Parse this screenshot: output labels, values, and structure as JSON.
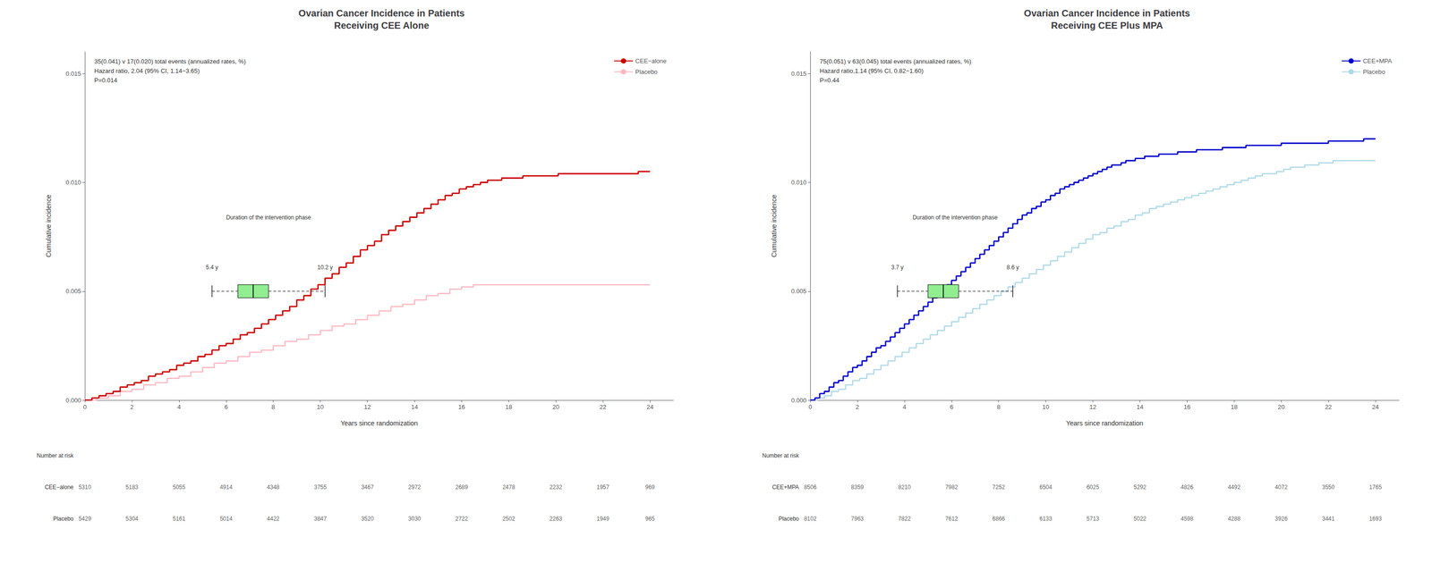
{
  "chart_data": [
    {
      "type": "step",
      "title": "Ovarian Cancer Incidence in Patients\nReceiving CEE Alone",
      "annotation": "35(0.041) v 17(0.020) total events (annualized rates, %)\nHazard ratio, 2.04 (95% CI, 1.14−3.65)\nP=0.014",
      "xlabel": "Years since randomization",
      "ylabel": "Cumulative incidence",
      "xlim": [
        0,
        25
      ],
      "xticks": [
        0,
        2,
        4,
        6,
        8,
        10,
        12,
        14,
        16,
        18,
        20,
        22,
        24
      ],
      "ylim": [
        0,
        0.016
      ],
      "yticks": [
        {
          "value": 0,
          "label": "0.000"
        },
        0.005,
        {
          "value": 0.01,
          "label": "0.010"
        },
        0.015
      ],
      "grid": false,
      "legend": "upper right",
      "series": [
        {
          "name": "CEE−alone",
          "color": "#CC0000",
          "x": [
            0,
            0.3,
            0.6,
            0.9,
            1.2,
            1.5,
            1.8,
            2.1,
            2.4,
            2.7,
            3.0,
            3.3,
            3.6,
            3.9,
            4.2,
            4.5,
            4.8,
            5.1,
            5.4,
            5.7,
            6.0,
            6.3,
            6.6,
            6.9,
            7.2,
            7.5,
            7.8,
            8.1,
            8.4,
            8.7,
            9.0,
            9.3,
            9.6,
            9.9,
            10.2,
            10.5,
            10.8,
            11.1,
            11.4,
            11.7,
            12.0,
            12.3,
            12.6,
            12.9,
            13.2,
            13.5,
            13.8,
            14.1,
            14.4,
            14.7,
            15.0,
            15.3,
            15.6,
            15.9,
            16.2,
            16.5,
            16.8,
            17.1,
            17.4,
            17.7,
            18.0,
            18.3,
            18.6,
            18.9,
            19.2,
            19.5,
            19.8,
            20.1,
            20.4,
            20.7,
            21.0,
            21.5,
            22.0,
            22.5,
            23.0,
            23.5,
            24.0
          ],
          "values": [
            0,
            0.0001,
            0.0002,
            0.0003,
            0.0004,
            0.0006,
            0.0007,
            0.0008,
            0.0009,
            0.0011,
            0.0012,
            0.0013,
            0.0014,
            0.0016,
            0.0017,
            0.0018,
            0.002,
            0.0021,
            0.0023,
            0.0025,
            0.0026,
            0.0028,
            0.003,
            0.0031,
            0.0033,
            0.0035,
            0.0037,
            0.0039,
            0.0041,
            0.0043,
            0.0046,
            0.0048,
            0.0051,
            0.0053,
            0.0056,
            0.0058,
            0.0061,
            0.0063,
            0.0066,
            0.0069,
            0.0071,
            0.0073,
            0.0076,
            0.0078,
            0.008,
            0.0082,
            0.0084,
            0.0086,
            0.0088,
            0.009,
            0.0092,
            0.0094,
            0.0095,
            0.0097,
            0.0098,
            0.0099,
            0.01,
            0.0101,
            0.0101,
            0.0102,
            0.0102,
            0.0102,
            0.0103,
            0.0103,
            0.0103,
            0.0103,
            0.0103,
            0.0104,
            0.0104,
            0.0104,
            0.0104,
            0.0104,
            0.0104,
            0.0104,
            0.0104,
            0.0105,
            0.0105
          ]
        },
        {
          "name": "Placebo",
          "color": "#FFB6C1",
          "x": [
            0,
            0.5,
            1.0,
            1.5,
            2.0,
            2.5,
            3.0,
            3.5,
            4.0,
            4.5,
            5.0,
            5.5,
            6.0,
            6.5,
            7.0,
            7.5,
            8.0,
            8.5,
            9.0,
            9.5,
            10.0,
            10.5,
            11.0,
            11.5,
            12.0,
            12.5,
            13.0,
            13.5,
            14.0,
            14.5,
            15.0,
            15.5,
            16.0,
            16.5,
            17.0,
            17.5,
            18.0,
            18.5,
            19.0,
            19.5,
            20.0,
            20.5,
            21.0,
            21.5,
            22.0,
            22.5,
            23.0,
            23.5,
            24.0
          ],
          "values": [
            0,
            0.0001,
            0.0002,
            0.0004,
            0.0005,
            0.0007,
            0.0008,
            0.001,
            0.0011,
            0.0013,
            0.0015,
            0.0017,
            0.0018,
            0.002,
            0.0022,
            0.0023,
            0.0025,
            0.0027,
            0.0028,
            0.003,
            0.0032,
            0.0034,
            0.0035,
            0.0037,
            0.0039,
            0.0041,
            0.0043,
            0.0044,
            0.0046,
            0.0048,
            0.0049,
            0.0051,
            0.0052,
            0.0053,
            0.0053,
            0.0053,
            0.0053,
            0.0053,
            0.0053,
            0.0053,
            0.0053,
            0.0053,
            0.0053,
            0.0053,
            0.0053,
            0.0053,
            0.0053,
            0.0053,
            0.0053
          ]
        }
      ],
      "intervention": {
        "label": "Duration of the intervention phase",
        "start": 5.4,
        "end": 10.2,
        "box_left": 6.5,
        "box_right": 7.8,
        "median": 7.15,
        "y": 0.005,
        "start_label": "5.4 y",
        "end_label": "10.2 y",
        "box_color": "#90EE90",
        "line_color": "#000000"
      },
      "at_risk": {
        "title": "Number at risk",
        "x": [
          0,
          2,
          4,
          6,
          8,
          10,
          12,
          14,
          16,
          18,
          20,
          22,
          24
        ],
        "rows": [
          {
            "name": "CEE−alone",
            "values": [
              5310,
              5183,
              5055,
              4914,
              4348,
              3755,
              3467,
              2972,
              2689,
              2478,
              2232,
              1957,
              969
            ]
          },
          {
            "name": "Placebo",
            "values": [
              5429,
              5304,
              5161,
              5014,
              4422,
              3847,
              3520,
              3030,
              2722,
              2502,
              2263,
              1949,
              965
            ]
          }
        ]
      }
    },
    {
      "type": "step",
      "title": "Ovarian Cancer Incidence in Patients\nReceiving CEE Plus MPA",
      "annotation": "75(0.051) v 63(0.045) total events (annualized rates, %)\nHazard ratio,1.14 (95% CI, 0.82−1.60)\nP=0.44",
      "xlabel": "Years since randomization",
      "ylabel": "Cumulative incidence",
      "xlim": [
        0,
        25
      ],
      "xticks": [
        0,
        2,
        4,
        6,
        8,
        10,
        12,
        14,
        16,
        18,
        20,
        22,
        24
      ],
      "ylim": [
        0,
        0.016
      ],
      "yticks": [
        {
          "value": 0,
          "label": "0.000"
        },
        0.005,
        {
          "value": 0.01,
          "label": "0.010"
        },
        0.015
      ],
      "grid": false,
      "legend": "upper right",
      "series": [
        {
          "name": "CEE+MPA",
          "color": "#0000CC",
          "x": [
            0,
            0.2,
            0.4,
            0.6,
            0.8,
            1.0,
            1.2,
            1.4,
            1.6,
            1.8,
            2.0,
            2.2,
            2.4,
            2.6,
            2.8,
            3.0,
            3.2,
            3.4,
            3.6,
            3.8,
            4.0,
            4.2,
            4.4,
            4.6,
            4.8,
            5.0,
            5.2,
            5.4,
            5.6,
            5.8,
            6.0,
            6.2,
            6.4,
            6.6,
            6.8,
            7.0,
            7.2,
            7.4,
            7.6,
            7.8,
            8.0,
            8.2,
            8.4,
            8.6,
            8.8,
            9.0,
            9.2,
            9.4,
            9.6,
            9.8,
            10.0,
            10.2,
            10.4,
            10.6,
            10.8,
            11.0,
            11.2,
            11.4,
            11.6,
            11.8,
            12.0,
            12.2,
            12.4,
            12.6,
            12.8,
            13.0,
            13.2,
            13.4,
            13.6,
            13.8,
            14.0,
            14.2,
            14.4,
            14.6,
            14.8,
            15.0,
            15.2,
            15.4,
            15.6,
            15.8,
            16.0,
            16.2,
            16.4,
            16.6,
            16.8,
            17.0,
            17.5,
            18.0,
            18.5,
            19.0,
            19.5,
            20.0,
            20.5,
            21.0,
            21.5,
            22.0,
            22.5,
            23.0,
            23.5,
            24.0
          ],
          "values": [
            0,
            0.0001,
            0.0003,
            0.0004,
            0.0006,
            0.0008,
            0.0009,
            0.0011,
            0.0013,
            0.0015,
            0.0016,
            0.0018,
            0.002,
            0.0022,
            0.0024,
            0.0025,
            0.0027,
            0.0029,
            0.0031,
            0.0033,
            0.0035,
            0.0037,
            0.0039,
            0.0041,
            0.0043,
            0.0045,
            0.0047,
            0.0049,
            0.0051,
            0.0053,
            0.0055,
            0.0057,
            0.0059,
            0.0061,
            0.0063,
            0.0065,
            0.0067,
            0.0069,
            0.0071,
            0.0073,
            0.0075,
            0.0077,
            0.0079,
            0.0081,
            0.0083,
            0.0085,
            0.0086,
            0.0088,
            0.0089,
            0.0091,
            0.0092,
            0.0094,
            0.0095,
            0.0097,
            0.0098,
            0.0099,
            0.01,
            0.0101,
            0.0102,
            0.0103,
            0.0104,
            0.0105,
            0.0106,
            0.0107,
            0.0108,
            0.0108,
            0.0109,
            0.011,
            0.011,
            0.0111,
            0.0111,
            0.0112,
            0.0112,
            0.0112,
            0.0113,
            0.0113,
            0.0113,
            0.0113,
            0.0114,
            0.0114,
            0.0114,
            0.0114,
            0.0115,
            0.0115,
            0.0115,
            0.0115,
            0.0116,
            0.0116,
            0.0117,
            0.0117,
            0.0117,
            0.0118,
            0.0118,
            0.0118,
            0.0118,
            0.0119,
            0.0119,
            0.0119,
            0.012,
            0.012
          ]
        },
        {
          "name": "Placebo",
          "color": "#ADD8E6",
          "x": [
            0,
            0.3,
            0.6,
            0.9,
            1.2,
            1.5,
            1.8,
            2.1,
            2.4,
            2.7,
            3.0,
            3.3,
            3.6,
            3.9,
            4.2,
            4.5,
            4.8,
            5.1,
            5.4,
            5.7,
            6.0,
            6.3,
            6.6,
            6.9,
            7.2,
            7.5,
            7.8,
            8.1,
            8.4,
            8.7,
            9.0,
            9.3,
            9.6,
            9.9,
            10.2,
            10.5,
            10.8,
            11.1,
            11.4,
            11.7,
            12.0,
            12.3,
            12.6,
            12.9,
            13.2,
            13.5,
            13.8,
            14.1,
            14.4,
            14.7,
            15.0,
            15.3,
            15.6,
            15.9,
            16.2,
            16.5,
            16.8,
            17.1,
            17.4,
            17.7,
            18.0,
            18.3,
            18.6,
            18.9,
            19.2,
            19.5,
            19.8,
            20.1,
            20.4,
            20.7,
            21.0,
            21.3,
            21.6,
            21.9,
            22.2,
            22.5,
            22.8,
            23.1,
            23.4,
            23.7,
            24.0
          ],
          "values": [
            0,
            0.0001,
            0.0002,
            0.0004,
            0.0005,
            0.0007,
            0.0009,
            0.001,
            0.0012,
            0.0014,
            0.0016,
            0.0018,
            0.002,
            0.0022,
            0.0024,
            0.0026,
            0.0028,
            0.003,
            0.0032,
            0.0034,
            0.0036,
            0.0038,
            0.004,
            0.0042,
            0.0044,
            0.0046,
            0.0048,
            0.005,
            0.0052,
            0.0054,
            0.0056,
            0.0058,
            0.006,
            0.0062,
            0.0064,
            0.0066,
            0.0068,
            0.007,
            0.0072,
            0.0074,
            0.0076,
            0.0077,
            0.0079,
            0.008,
            0.0082,
            0.0083,
            0.0085,
            0.0086,
            0.0088,
            0.0089,
            0.009,
            0.0091,
            0.0092,
            0.0093,
            0.0094,
            0.0095,
            0.0096,
            0.0097,
            0.0098,
            0.0099,
            0.01,
            0.0101,
            0.0102,
            0.0103,
            0.0104,
            0.0104,
            0.0105,
            0.0106,
            0.0107,
            0.0107,
            0.0108,
            0.0108,
            0.0109,
            0.0109,
            0.011,
            0.011,
            0.011,
            0.011,
            0.011,
            0.011,
            0.011
          ]
        }
      ],
      "intervention": {
        "label": "Duration of the intervention phase",
        "start": 3.7,
        "end": 8.6,
        "box_left": 5.0,
        "box_right": 6.3,
        "median": 5.65,
        "y": 0.005,
        "start_label": "3.7 y",
        "end_label": "8.6 y",
        "box_color": "#90EE90",
        "line_color": "#000000"
      },
      "at_risk": {
        "title": "Number at risk",
        "x": [
          0,
          2,
          4,
          6,
          8,
          10,
          12,
          14,
          16,
          18,
          20,
          22,
          24
        ],
        "rows": [
          {
            "name": "CEE+MPA",
            "values": [
              8506,
              8359,
              8210,
              7982,
              7252,
              6504,
              6025,
              5292,
              4826,
              4492,
              4072,
              3550,
              1765
            ]
          },
          {
            "name": "Placebo",
            "values": [
              8102,
              7963,
              7822,
              7612,
              6866,
              6133,
              5713,
              5022,
              4598,
              4288,
              3926,
              3441,
              1693
            ]
          }
        ]
      }
    }
  ]
}
